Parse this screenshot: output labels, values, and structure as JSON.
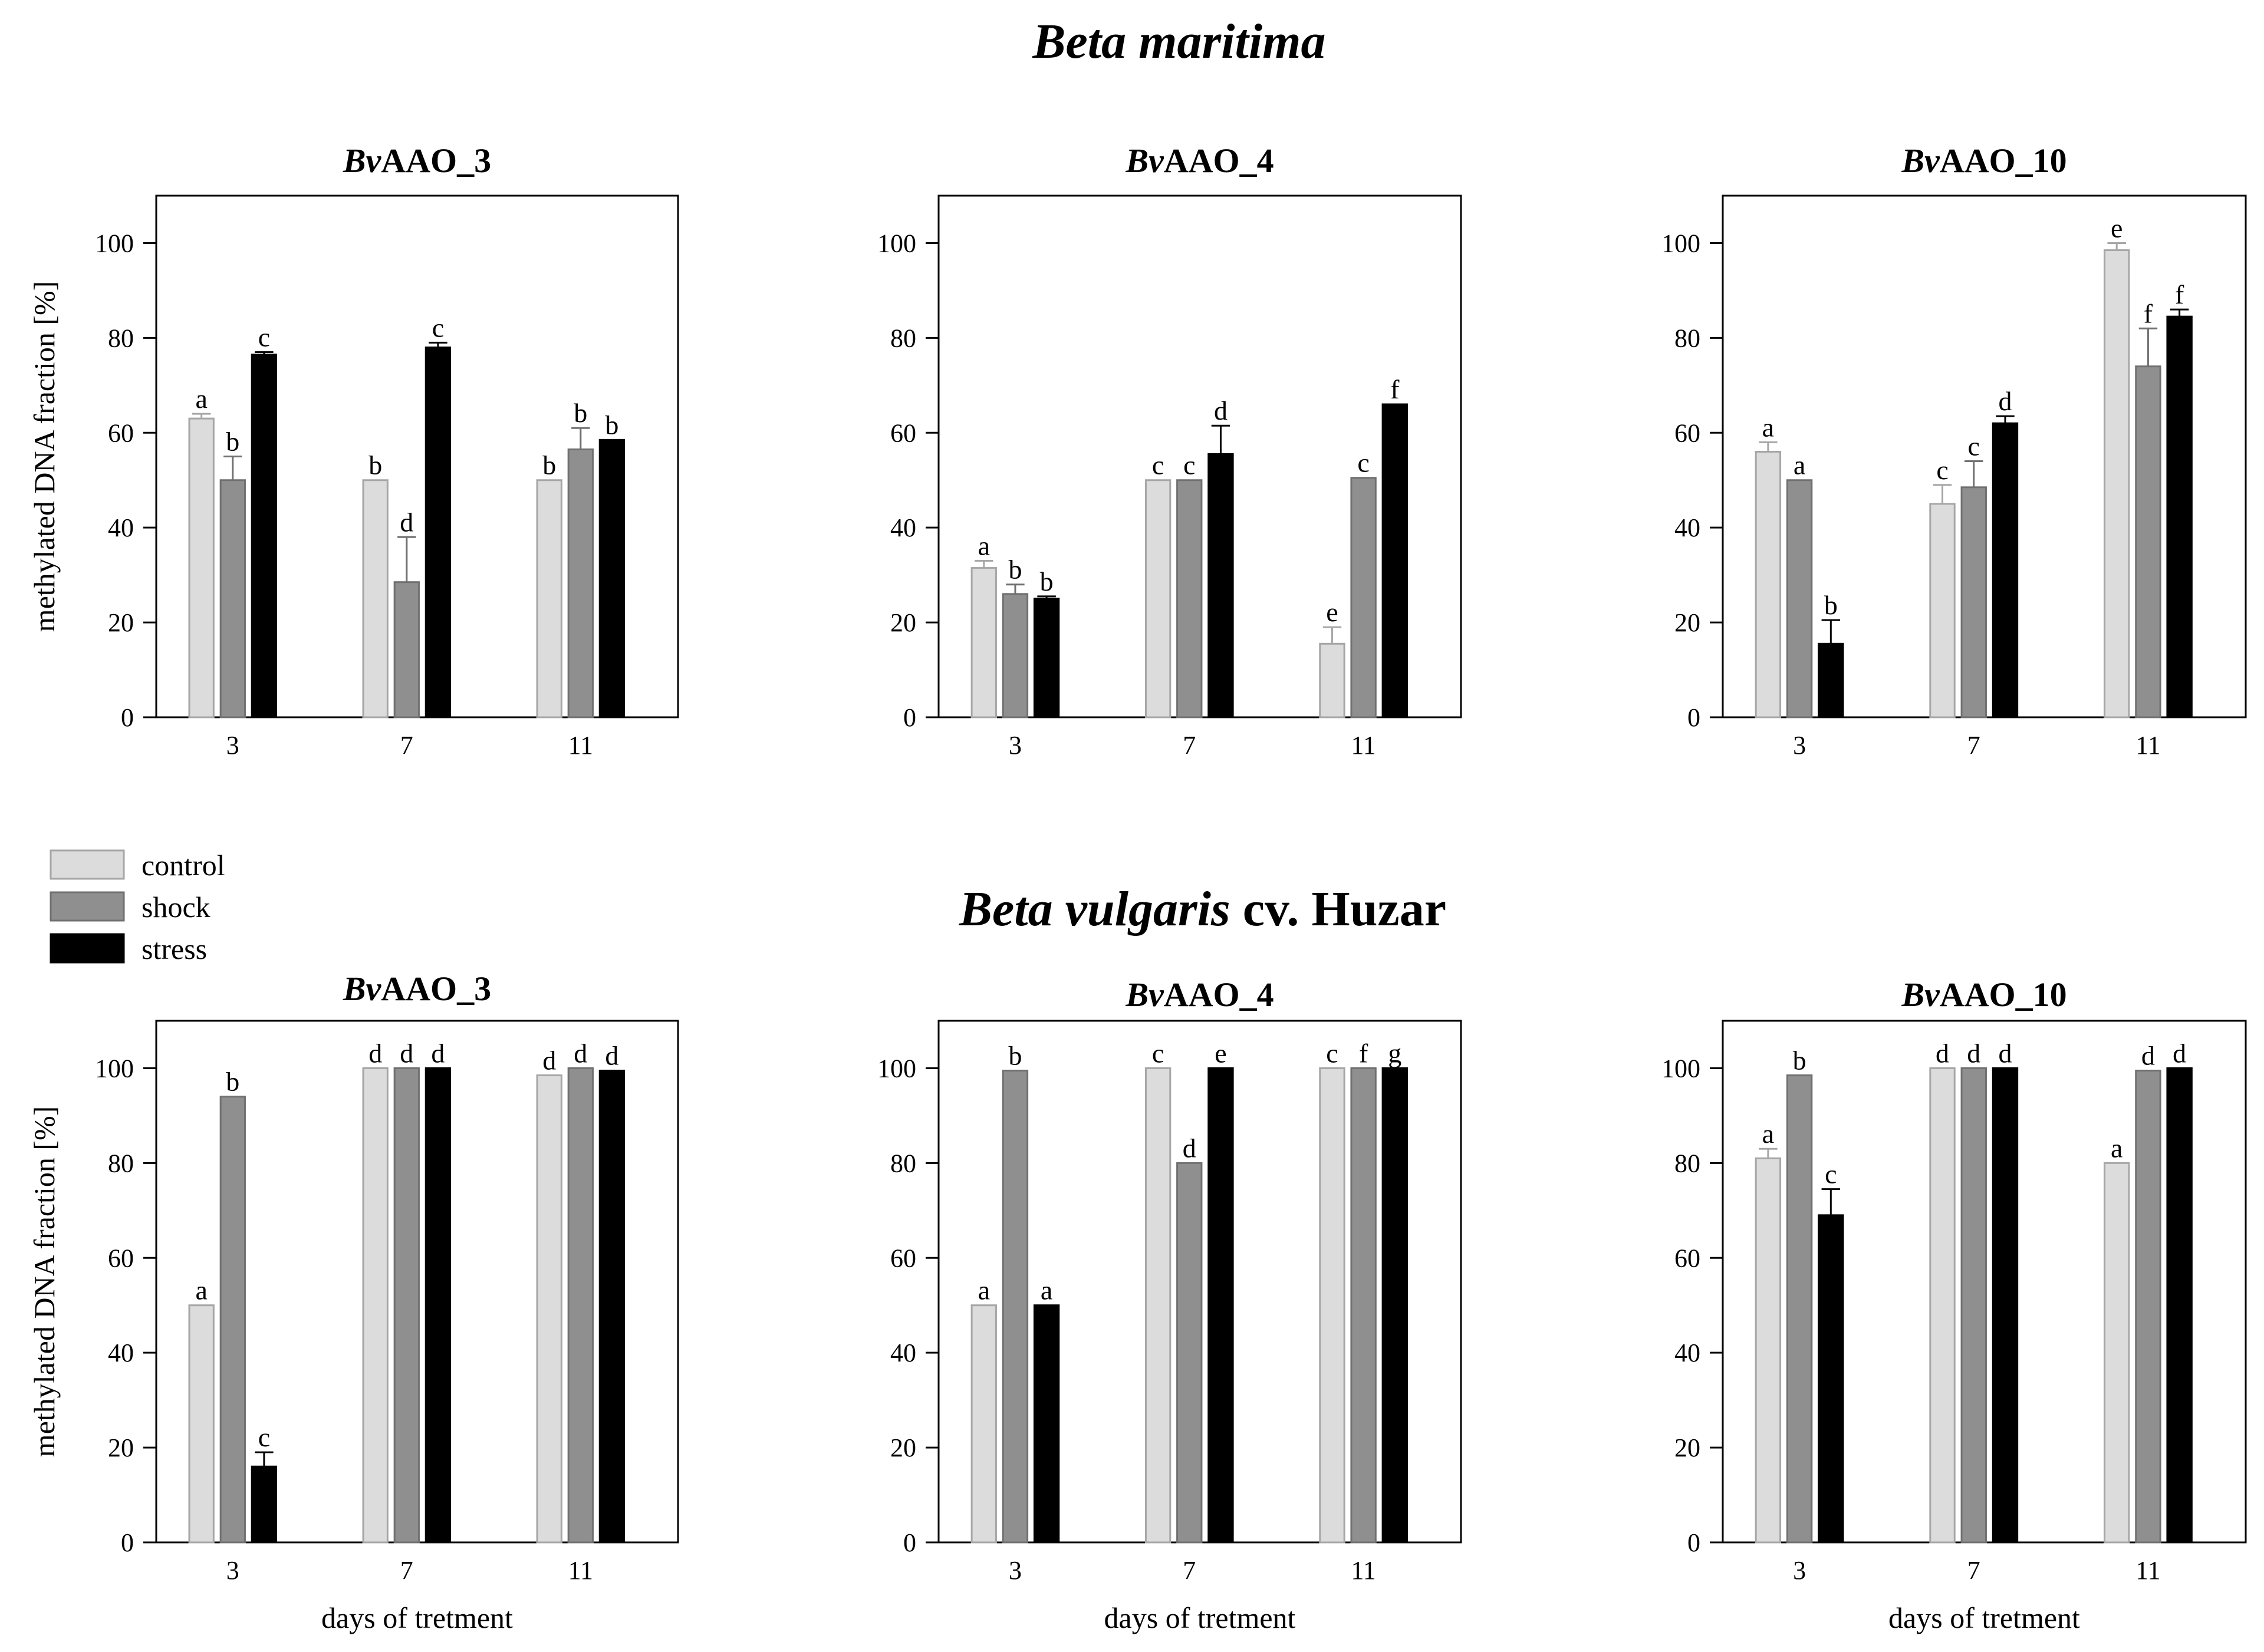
{
  "figure": {
    "series_names": [
      "control",
      "shock",
      "stress"
    ],
    "colors": {
      "control": "#dcdcdc",
      "shock": "#8f8f8f",
      "stress": "#000000",
      "control_edge": "#a6a6a6",
      "shock_edge": "#707070",
      "stress_edge": "#000000"
    },
    "sections": [
      {
        "title_italic": "Beta maritima",
        "title_rest": ""
      },
      {
        "title_italic": "Beta vulgaris",
        "title_rest": " cv. Huzar"
      }
    ]
  },
  "legend": {
    "items": [
      "control",
      "shock",
      "stress"
    ]
  },
  "chart_data": [
    {
      "type": "bar",
      "section": 0,
      "title_italic": "Bv",
      "title_rest": "AAO_3",
      "categories": [
        "3",
        "7",
        "11"
      ],
      "ylabel": "methylated DNA fraction [%]",
      "xlabel": "",
      "ylim": [
        0,
        110
      ],
      "yticks": [
        0,
        20,
        40,
        60,
        80,
        100
      ],
      "series": [
        {
          "name": "control",
          "values": [
            63,
            50,
            50
          ],
          "errors": [
            1,
            0,
            0
          ],
          "letters": [
            "a",
            "b",
            "b"
          ]
        },
        {
          "name": "shock",
          "values": [
            50,
            28.5,
            56.5
          ],
          "errors": [
            5,
            9.5,
            4.5
          ],
          "letters": [
            "b",
            "d",
            "b"
          ]
        },
        {
          "name": "stress",
          "values": [
            76.5,
            78,
            58.5
          ],
          "errors": [
            0.5,
            1,
            0
          ],
          "letters": [
            "c",
            "c",
            "b"
          ]
        }
      ]
    },
    {
      "type": "bar",
      "section": 0,
      "title_italic": "Bv",
      "title_rest": "AAO_4",
      "categories": [
        "3",
        "7",
        "11"
      ],
      "ylabel": "",
      "xlabel": "",
      "ylim": [
        0,
        110
      ],
      "yticks": [
        0,
        20,
        40,
        60,
        80,
        100
      ],
      "series": [
        {
          "name": "control",
          "values": [
            31.5,
            50,
            15.5
          ],
          "errors": [
            1.5,
            0,
            3.5
          ],
          "letters": [
            "a",
            "c",
            "e"
          ]
        },
        {
          "name": "shock",
          "values": [
            26,
            50,
            50.5
          ],
          "errors": [
            2,
            0,
            0
          ],
          "letters": [
            "b",
            "c",
            "c"
          ]
        },
        {
          "name": "stress",
          "values": [
            25,
            55.5,
            66
          ],
          "errors": [
            0.5,
            6,
            0
          ],
          "letters": [
            "b",
            "d",
            "f"
          ]
        }
      ]
    },
    {
      "type": "bar",
      "section": 0,
      "title_italic": "Bv",
      "title_rest": "AAO_10",
      "categories": [
        "3",
        "7",
        "11"
      ],
      "ylabel": "",
      "xlabel": "",
      "ylim": [
        0,
        110
      ],
      "yticks": [
        0,
        20,
        40,
        60,
        80,
        100
      ],
      "series": [
        {
          "name": "control",
          "values": [
            56,
            45,
            98.5
          ],
          "errors": [
            2,
            4,
            1.5
          ],
          "letters": [
            "a",
            "c",
            "e"
          ]
        },
        {
          "name": "shock",
          "values": [
            50,
            48.5,
            74
          ],
          "errors": [
            0,
            5.5,
            8
          ],
          "letters": [
            "a",
            "c",
            "f"
          ]
        },
        {
          "name": "stress",
          "values": [
            15.5,
            62,
            84.5
          ],
          "errors": [
            5,
            1.5,
            1.5
          ],
          "letters": [
            "b",
            "d",
            "f"
          ]
        }
      ]
    },
    {
      "type": "bar",
      "section": 1,
      "title_italic": "Bv",
      "title_rest": "AAO_3",
      "categories": [
        "3",
        "7",
        "11"
      ],
      "ylabel": "methylated DNA fraction [%]",
      "xlabel": "days of tretment",
      "ylim": [
        0,
        110
      ],
      "yticks": [
        0,
        20,
        40,
        60,
        80,
        100
      ],
      "series": [
        {
          "name": "control",
          "values": [
            50,
            100,
            98.5
          ],
          "errors": [
            0,
            0,
            0
          ],
          "letters": [
            "a",
            "d",
            "d"
          ]
        },
        {
          "name": "shock",
          "values": [
            94,
            100,
            100
          ],
          "errors": [
            0,
            0,
            0
          ],
          "letters": [
            "b",
            "d",
            "d"
          ]
        },
        {
          "name": "stress",
          "values": [
            16,
            100,
            99.5
          ],
          "errors": [
            3,
            0,
            0
          ],
          "letters": [
            "c",
            "d",
            "d"
          ]
        }
      ]
    },
    {
      "type": "bar",
      "section": 1,
      "title_italic": "Bv",
      "title_rest": "AAO_4",
      "categories": [
        "3",
        "7",
        "11"
      ],
      "ylabel": "",
      "xlabel": "days of tretment",
      "ylim": [
        0,
        110
      ],
      "yticks": [
        0,
        20,
        40,
        60,
        80,
        100
      ],
      "series": [
        {
          "name": "control",
          "values": [
            50,
            100,
            100
          ],
          "errors": [
            0,
            0,
            0
          ],
          "letters": [
            "a",
            "c",
            "c"
          ]
        },
        {
          "name": "shock",
          "values": [
            99.5,
            80,
            100
          ],
          "errors": [
            0,
            0,
            0
          ],
          "letters": [
            "b",
            "d",
            "f"
          ]
        },
        {
          "name": "stress",
          "values": [
            50,
            100,
            100
          ],
          "errors": [
            0,
            0,
            0
          ],
          "letters": [
            "a",
            "e",
            "g"
          ]
        }
      ]
    },
    {
      "type": "bar",
      "section": 1,
      "title_italic": "Bv",
      "title_rest": "AAO_10",
      "categories": [
        "3",
        "7",
        "11"
      ],
      "ylabel": "",
      "xlabel": "days of tretment",
      "ylim": [
        0,
        110
      ],
      "yticks": [
        0,
        20,
        40,
        60,
        80,
        100
      ],
      "series": [
        {
          "name": "control",
          "values": [
            81,
            100,
            80
          ],
          "errors": [
            2,
            0,
            0
          ],
          "letters": [
            "a",
            "d",
            "a"
          ]
        },
        {
          "name": "shock",
          "values": [
            98.5,
            100,
            99.5
          ],
          "errors": [
            0,
            0,
            0
          ],
          "letters": [
            "b",
            "d",
            "d"
          ]
        },
        {
          "name": "stress",
          "values": [
            69,
            100,
            100
          ],
          "errors": [
            5.5,
            0,
            0
          ],
          "letters": [
            "c",
            "d",
            "d"
          ]
        }
      ]
    }
  ]
}
